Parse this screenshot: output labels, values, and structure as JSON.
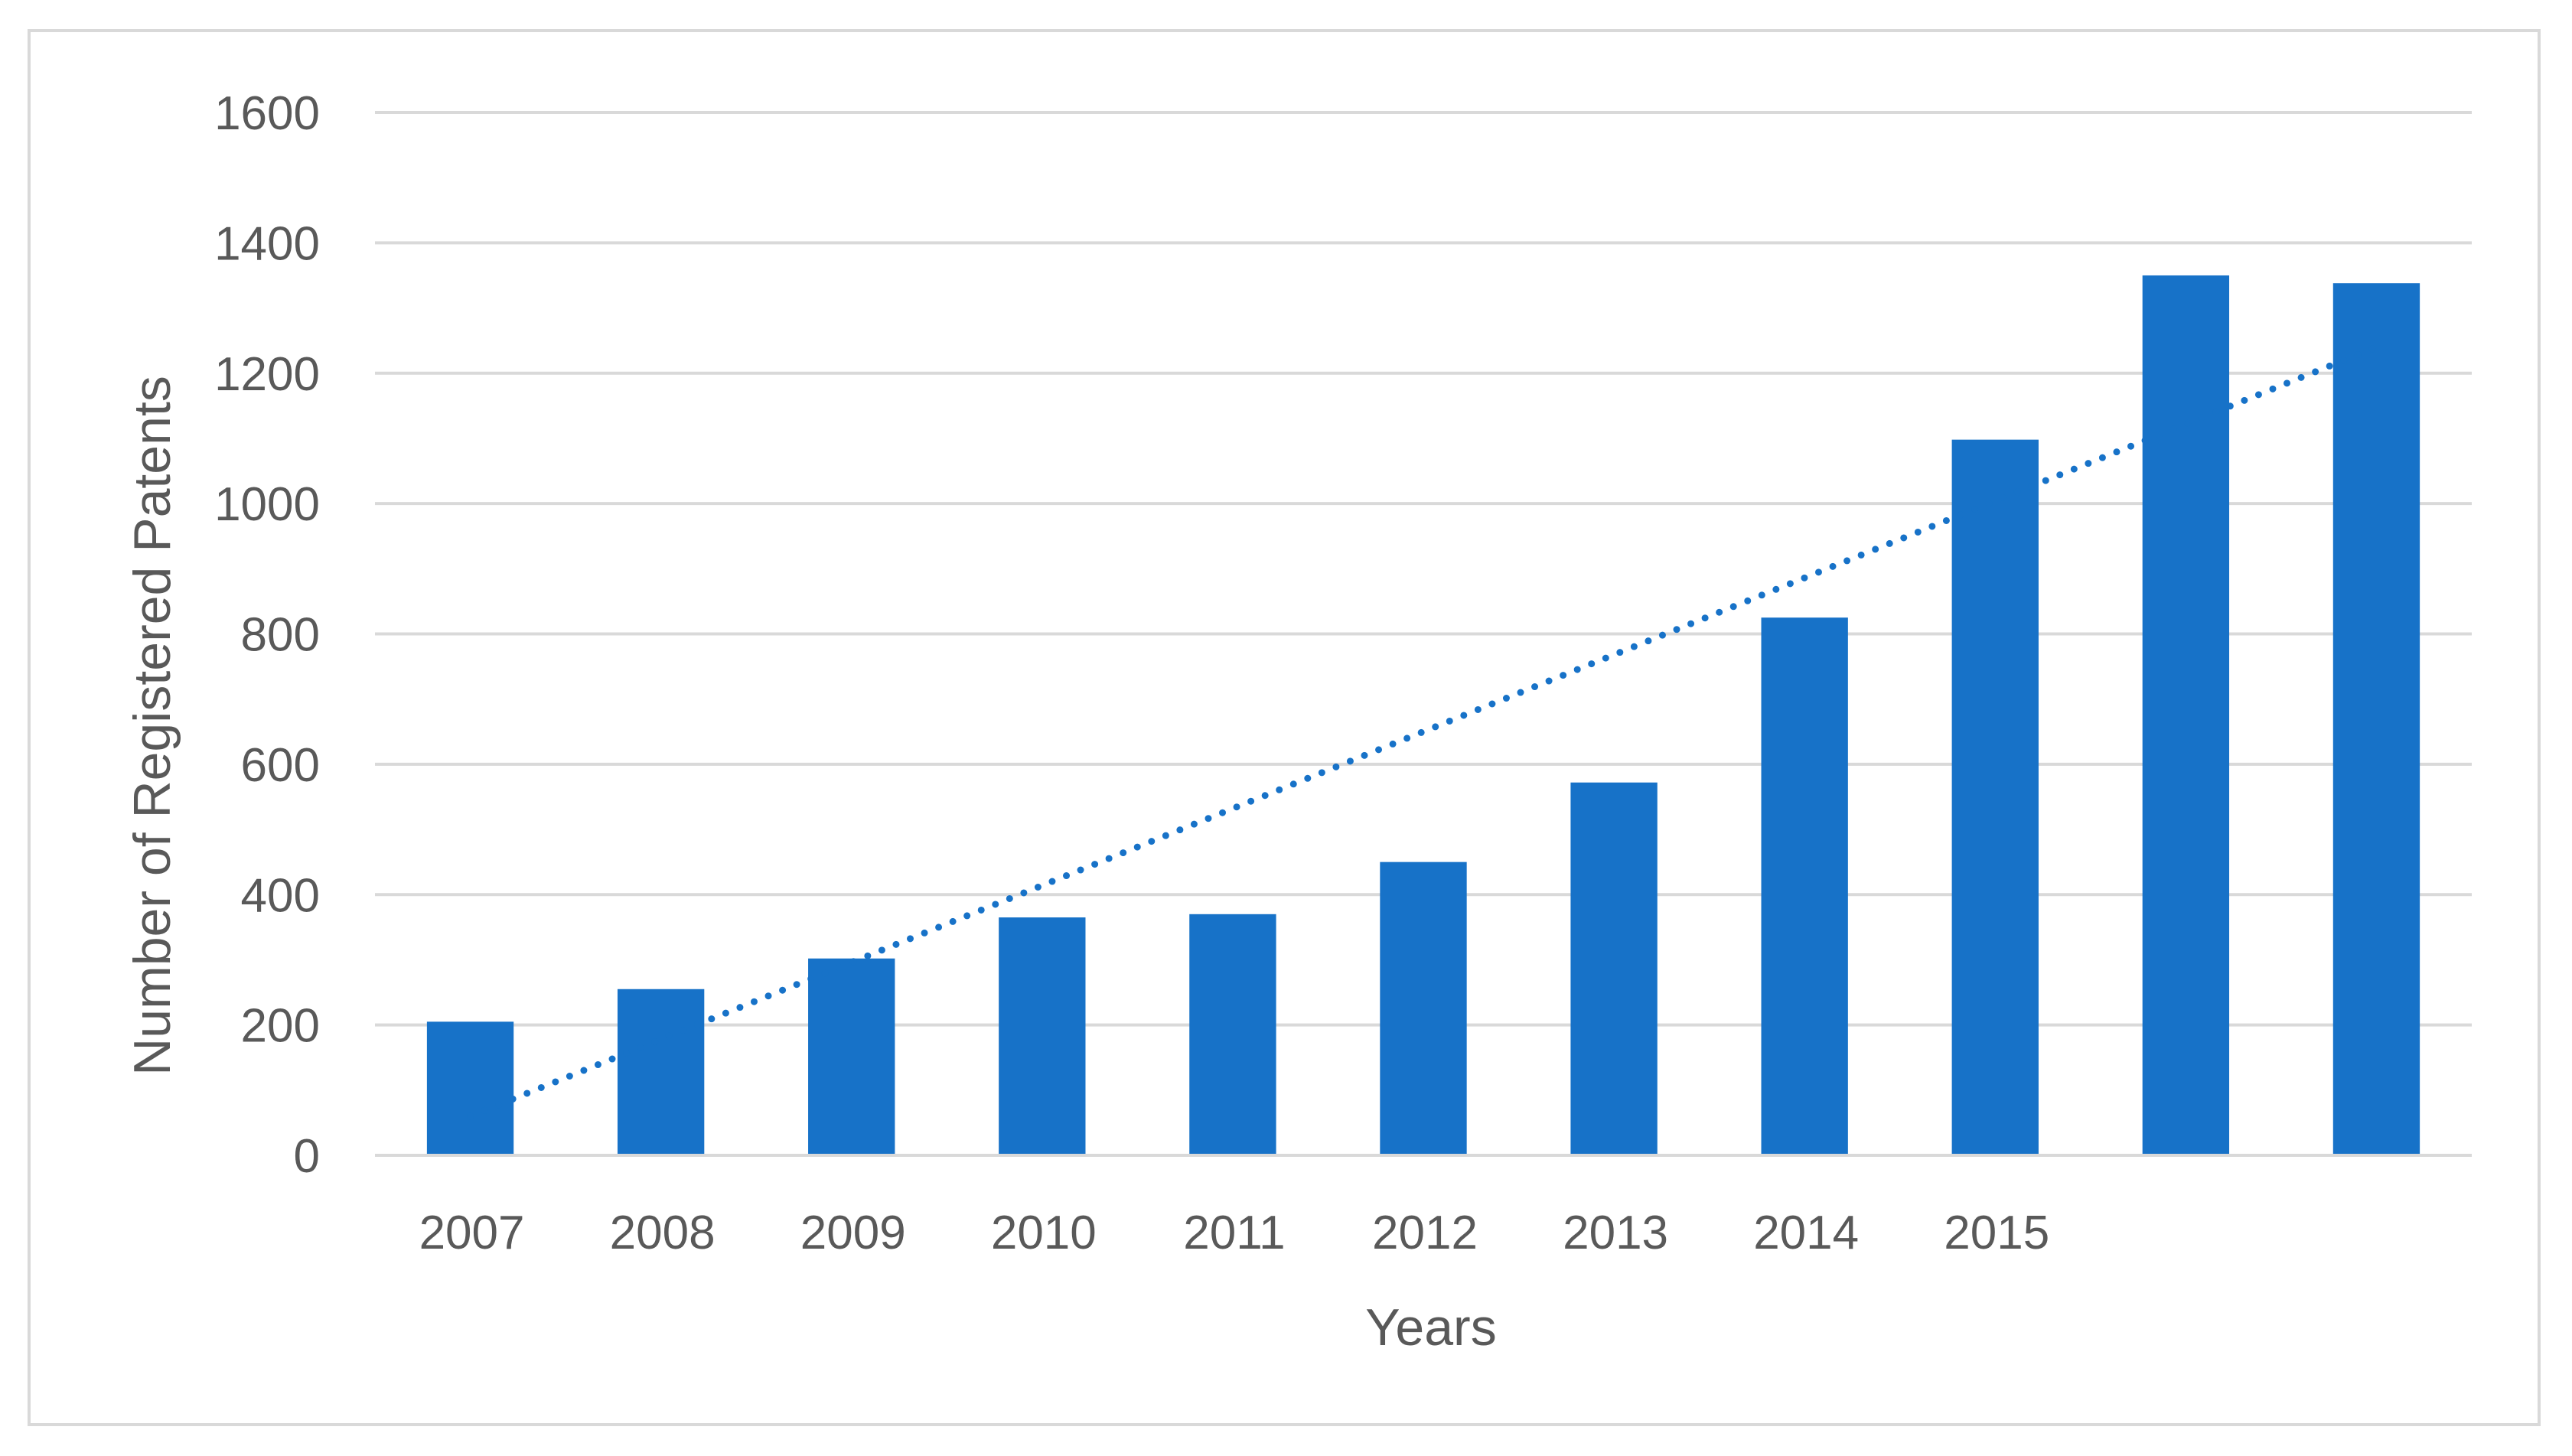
{
  "chart_data": {
    "type": "bar",
    "categories": [
      "2007",
      "2008",
      "2009",
      "2010",
      "2011",
      "2012",
      "2013",
      "2014",
      "2015",
      "",
      ""
    ],
    "series": [
      {
        "values": [
          205,
          255,
          302,
          365,
          370,
          450,
          572,
          825,
          1098,
          1350,
          1338
        ],
        "color": "#1772C8"
      }
    ],
    "trendline": {
      "type": "linear",
      "style": "dotted",
      "color": "#1772C8",
      "start": 60,
      "end": 1240
    },
    "title": "",
    "xlabel": "Years",
    "ylabel": "Number of Registered Patents",
    "ylim": [
      0,
      1600
    ],
    "yticks": [
      0,
      200,
      400,
      600,
      800,
      1000,
      1200,
      1400,
      1600
    ],
    "grid": true,
    "legend": "none"
  }
}
